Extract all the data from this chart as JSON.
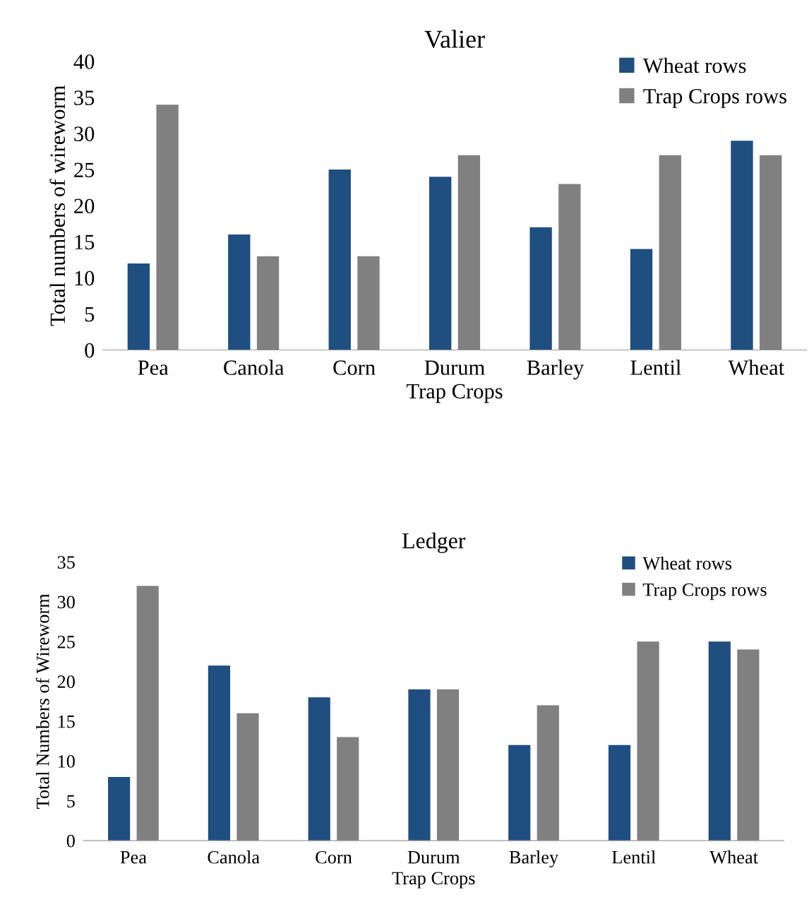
{
  "chart_data": [
    {
      "type": "bar",
      "title": "Valier",
      "xlabel": "Trap Crops",
      "ylabel": "Total numbers of wireworm",
      "categories": [
        "Pea",
        "Canola",
        "Corn",
        "Durum",
        "Barley",
        "Lentil",
        "Wheat"
      ],
      "series": [
        {
          "name": "Wheat rows",
          "color": "#1f4e80",
          "values": [
            12,
            16,
            25,
            24,
            17,
            14,
            29
          ]
        },
        {
          "name": "Trap Crops rows",
          "color": "#808080",
          "values": [
            34,
            13,
            13,
            27,
            23,
            27,
            27
          ]
        }
      ],
      "ylim": [
        0,
        40
      ],
      "yticks": [
        0,
        5,
        10,
        15,
        20,
        25,
        30,
        35,
        40
      ],
      "grid": false,
      "legend": "top right"
    },
    {
      "type": "bar",
      "title": "Ledger",
      "xlabel": "Trap Crops",
      "ylabel": "Total Numbers of Wireworm",
      "categories": [
        "Pea",
        "Canola",
        "Corn",
        "Durum",
        "Barley",
        "Lentil",
        "Wheat"
      ],
      "series": [
        {
          "name": "Wheat rows",
          "color": "#1f4e80",
          "values": [
            8,
            22,
            18,
            19,
            12,
            12,
            25
          ]
        },
        {
          "name": "Trap Crops rows",
          "color": "#808080",
          "values": [
            32,
            16,
            13,
            19,
            17,
            25,
            24
          ]
        }
      ],
      "ylim": [
        0,
        35
      ],
      "yticks": [
        0,
        5,
        10,
        15,
        20,
        25,
        30,
        35
      ],
      "grid": false,
      "legend": "top right"
    }
  ]
}
